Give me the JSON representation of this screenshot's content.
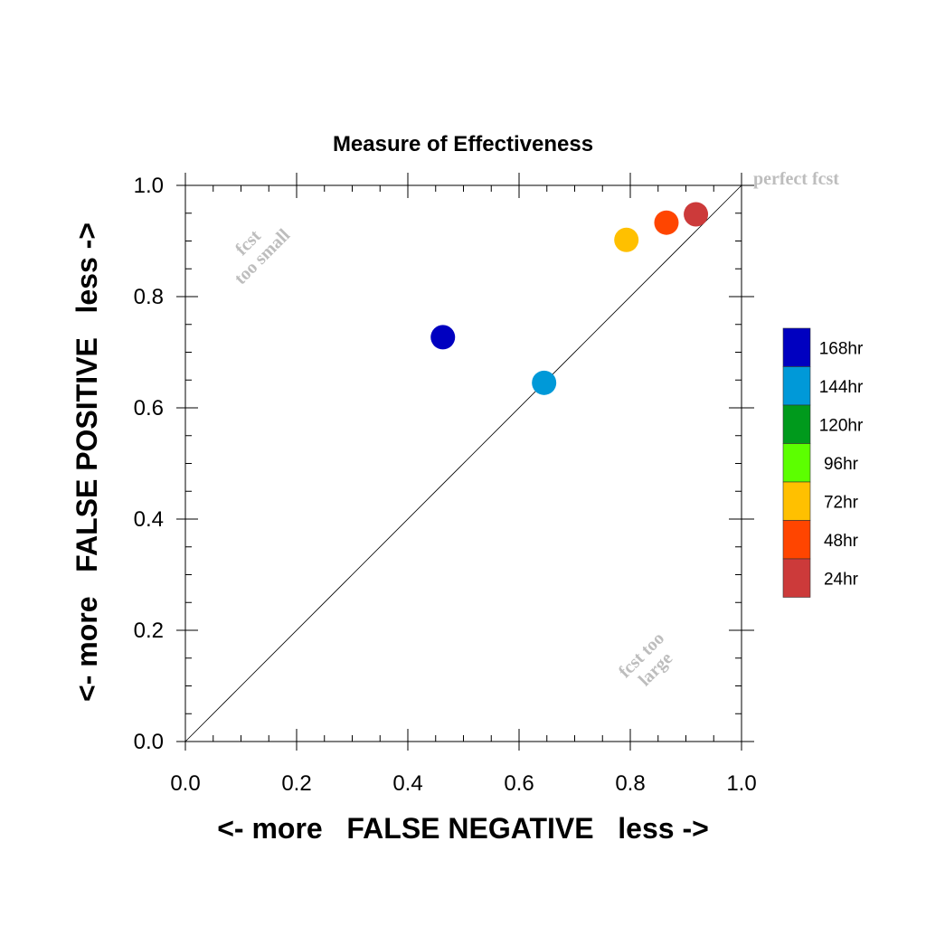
{
  "chart_data": {
    "type": "scatter",
    "title": "Measure of Effectiveness",
    "xlabel": "<- more   FALSE NEGATIVE   less ->",
    "ylabel": "<- more   FALSE POSITIVE   less ->",
    "xlim": [
      0,
      1
    ],
    "ylim": [
      0,
      1
    ],
    "x_ticks": [
      "0.0",
      "0.2",
      "0.4",
      "0.6",
      "0.8",
      "1.0"
    ],
    "y_ticks": [
      "0.0",
      "0.2",
      "0.4",
      "0.6",
      "0.8",
      "1.0"
    ],
    "diagonal": true,
    "grid": false,
    "legend_position": "right",
    "annotations": {
      "perfect": "perfect fcst",
      "small_line1": "fcst",
      "small_line2": "too small",
      "large_line1": "fcst too",
      "large_line2": "large"
    },
    "legend": [
      {
        "label": "168hr",
        "color": "#0000c0"
      },
      {
        "label": "144hr",
        "color": "#0099d8"
      },
      {
        "label": "120hr",
        "color": "#009a1c"
      },
      {
        "label": "96hr",
        "color": "#5cff00"
      },
      {
        "label": "72hr",
        "color": "#ffc000"
      },
      {
        "label": "48hr",
        "color": "#ff4500"
      },
      {
        "label": "24hr",
        "color": "#cc3a3a"
      }
    ],
    "points": [
      {
        "label": "168hr",
        "x": 0.463,
        "y": 0.727,
        "color": "#0000c0"
      },
      {
        "label": "144hr",
        "x": 0.645,
        "y": 0.645,
        "color": "#0099d8"
      },
      {
        "label": "72hr",
        "x": 0.793,
        "y": 0.902,
        "color": "#ffc000"
      },
      {
        "label": "48hr",
        "x": 0.865,
        "y": 0.933,
        "color": "#ff4500"
      },
      {
        "label": "24hr",
        "x": 0.918,
        "y": 0.948,
        "color": "#cc3a3a"
      }
    ]
  }
}
